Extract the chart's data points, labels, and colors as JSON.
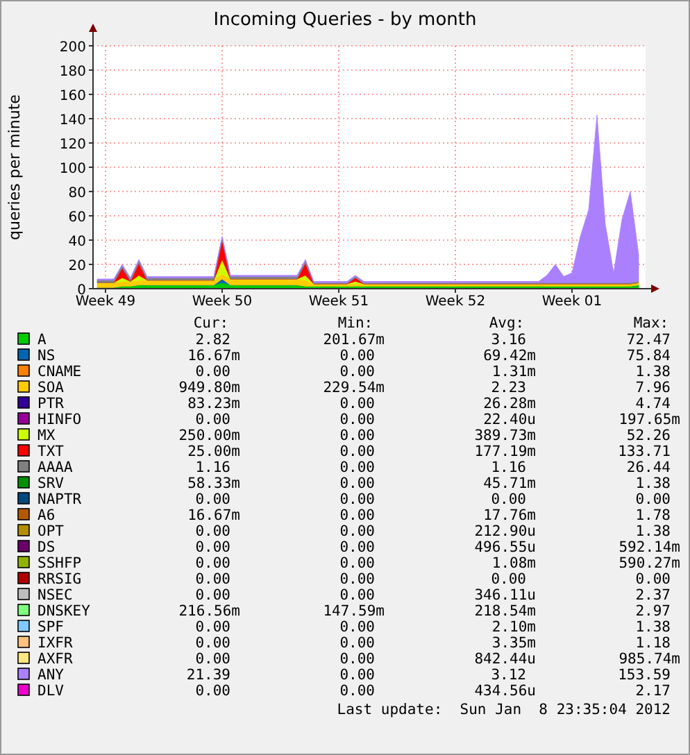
{
  "chart_data": {
    "type": "area",
    "stacked": true,
    "title": "Incoming Queries - by month",
    "ylabel": "queries per minute",
    "categories": [
      null,
      "Week 49",
      null,
      null,
      null,
      null,
      null,
      null,
      null,
      null,
      null,
      null,
      null,
      null,
      null,
      "Week 50",
      null,
      null,
      null,
      null,
      null,
      null,
      null,
      null,
      null,
      null,
      null,
      null,
      null,
      "Week 51",
      null,
      null,
      null,
      null,
      null,
      null,
      null,
      null,
      null,
      null,
      null,
      null,
      null,
      "Week 52",
      null,
      null,
      null,
      null,
      null,
      null,
      null,
      null,
      null,
      null,
      null,
      null,
      null,
      "Week 01",
      null,
      null,
      null,
      null,
      null,
      null,
      null,
      null
    ],
    "ylim": [
      0,
      200
    ],
    "yticks": [
      0,
      20,
      40,
      60,
      80,
      100,
      120,
      140,
      160,
      180,
      200
    ],
    "grid": true,
    "legend": "bottom",
    "series": [
      {
        "name": "A",
        "color": "#00cc00",
        "values": [
          1,
          1,
          1,
          2,
          2,
          3,
          3,
          3,
          3,
          3,
          3,
          3,
          3,
          3,
          3,
          5,
          3,
          3,
          3,
          3,
          3,
          3,
          3,
          3,
          3,
          2,
          2,
          2,
          2,
          2,
          2,
          2,
          2,
          2,
          2,
          2,
          2,
          2,
          2,
          2,
          2,
          2,
          2,
          2,
          2,
          2,
          2,
          2,
          2,
          2,
          2,
          2,
          2,
          2,
          2,
          2,
          2,
          2,
          2,
          2,
          2,
          2,
          2,
          2,
          2,
          3
        ]
      },
      {
        "name": "NS",
        "color": "#0066b3",
        "values": [
          0,
          0,
          0,
          0,
          0,
          0,
          0,
          0,
          0,
          0,
          0,
          0,
          0,
          0,
          0,
          3,
          0,
          0,
          0,
          0,
          0,
          0,
          0,
          0,
          0,
          0,
          0,
          0,
          0,
          0,
          0,
          0,
          0,
          0,
          0,
          0,
          0,
          0,
          0,
          0,
          0,
          0,
          0,
          0,
          0,
          0,
          0,
          0,
          0,
          0,
          0,
          0,
          0,
          0,
          0,
          0,
          0,
          0,
          0,
          0,
          0,
          0,
          0,
          0,
          0,
          0
        ]
      },
      {
        "name": "CNAME",
        "color": "#ff8000",
        "values": [
          null,
          null,
          null,
          null,
          null,
          null,
          null,
          null,
          null,
          null,
          null,
          null,
          null,
          null,
          null,
          null,
          null,
          null,
          null,
          null,
          null,
          null,
          null,
          null,
          null,
          null,
          null,
          null,
          null,
          null,
          null,
          null,
          null,
          null,
          null,
          null,
          null,
          null,
          null,
          null,
          null,
          null,
          null,
          null,
          null,
          null,
          null,
          null,
          null,
          null,
          null,
          null,
          null,
          null,
          null,
          null,
          null,
          null,
          null,
          null,
          null,
          null,
          null,
          null,
          null,
          null
        ]
      },
      {
        "name": "SOA",
        "color": "#ffcc00",
        "values": [
          4,
          4,
          4,
          4,
          4,
          4,
          4,
          4,
          4,
          4,
          4,
          4,
          4,
          4,
          4,
          4,
          5,
          5,
          5,
          5,
          5,
          5,
          5,
          5,
          5,
          5,
          2,
          2,
          2,
          2,
          2,
          2,
          2,
          2,
          2,
          2,
          2,
          2,
          2,
          2,
          2,
          2,
          2,
          2,
          2,
          2,
          2,
          2,
          2,
          2,
          2,
          2,
          2,
          2,
          2,
          2,
          2,
          2,
          2,
          2,
          2,
          2,
          2,
          2,
          2,
          2
        ]
      },
      {
        "name": "PTR",
        "color": "#330099",
        "values": [
          null,
          null,
          null,
          null,
          null,
          null,
          null,
          null,
          null,
          null,
          null,
          null,
          null,
          null,
          null,
          null,
          null,
          null,
          null,
          null,
          null,
          null,
          null,
          null,
          null,
          null,
          null,
          null,
          null,
          null,
          null,
          null,
          null,
          null,
          null,
          null,
          null,
          null,
          null,
          null,
          null,
          null,
          null,
          null,
          null,
          null,
          null,
          null,
          null,
          null,
          null,
          null,
          null,
          null,
          null,
          null,
          null,
          null,
          null,
          null,
          null,
          null,
          null,
          null,
          null,
          null
        ]
      },
      {
        "name": "HINFO",
        "color": "#990099",
        "values": [
          null,
          null,
          null,
          null,
          null,
          null,
          null,
          null,
          null,
          null,
          null,
          null,
          null,
          null,
          null,
          null,
          null,
          null,
          null,
          null,
          null,
          null,
          null,
          null,
          null,
          null,
          null,
          null,
          null,
          null,
          null,
          null,
          null,
          null,
          null,
          null,
          null,
          null,
          null,
          null,
          null,
          null,
          null,
          null,
          null,
          null,
          null,
          null,
          null,
          null,
          null,
          null,
          null,
          null,
          null,
          null,
          null,
          null,
          null,
          null,
          null,
          null,
          null,
          null,
          null,
          null
        ]
      },
      {
        "name": "MX",
        "color": "#ccff00",
        "values": [
          0,
          0,
          0,
          3,
          0,
          4,
          0,
          0,
          0,
          0,
          0,
          0,
          0,
          0,
          0,
          12,
          0,
          0,
          0,
          0,
          0,
          0,
          0,
          0,
          0,
          4,
          0,
          0,
          0,
          0,
          0,
          2,
          0,
          0,
          0,
          0,
          0,
          0,
          0,
          0,
          0,
          0,
          0,
          0,
          0,
          0,
          0,
          0,
          0,
          0,
          0,
          0,
          0,
          0,
          0,
          0,
          0,
          0,
          0,
          0,
          0,
          0,
          0,
          0,
          0,
          0
        ]
      },
      {
        "name": "TXT",
        "color": "#ff0000",
        "values": [
          0,
          0,
          0,
          8,
          0,
          10,
          0,
          0,
          0,
          0,
          0,
          0,
          0,
          0,
          0,
          16,
          0,
          0,
          0,
          0,
          0,
          0,
          0,
          0,
          0,
          10,
          0,
          0,
          0,
          0,
          0,
          3,
          0,
          0,
          0,
          0,
          0,
          0,
          0,
          0,
          0,
          0,
          0,
          0,
          0,
          0,
          0,
          0,
          0,
          0,
          0,
          0,
          0,
          0,
          0,
          0,
          0,
          0,
          0,
          0,
          0,
          0,
          0,
          0,
          0,
          0
        ]
      },
      {
        "name": "AAAA",
        "color": "#808080",
        "values": [
          2,
          2,
          2,
          2,
          2,
          2,
          2,
          2,
          2,
          2,
          2,
          2,
          2,
          2,
          2,
          2,
          2,
          2,
          2,
          2,
          2,
          2,
          2,
          2,
          2,
          2,
          1,
          1,
          1,
          1,
          1,
          1,
          1,
          1,
          1,
          1,
          1,
          1,
          1,
          1,
          1,
          1,
          1,
          1,
          1,
          1,
          1,
          1,
          1,
          1,
          1,
          1,
          1,
          1,
          1,
          1,
          1,
          1,
          1,
          1,
          1,
          1,
          1,
          1,
          1,
          1
        ]
      },
      {
        "name": "SRV",
        "color": "#008f00",
        "values": [
          null,
          null,
          null,
          null,
          null,
          null,
          null,
          null,
          null,
          null,
          null,
          null,
          null,
          null,
          null,
          null,
          null,
          null,
          null,
          null,
          null,
          null,
          null,
          null,
          null,
          null,
          null,
          null,
          null,
          null,
          null,
          null,
          null,
          null,
          null,
          null,
          null,
          null,
          null,
          null,
          null,
          null,
          null,
          null,
          null,
          null,
          null,
          null,
          null,
          null,
          null,
          null,
          null,
          null,
          null,
          null,
          null,
          null,
          null,
          null,
          null,
          null,
          null,
          null,
          null,
          null
        ]
      },
      {
        "name": "NAPTR",
        "color": "#00487d",
        "values": [
          null,
          null,
          null,
          null,
          null,
          null,
          null,
          null,
          null,
          null,
          null,
          null,
          null,
          null,
          null,
          null,
          null,
          null,
          null,
          null,
          null,
          null,
          null,
          null,
          null,
          null,
          null,
          null,
          null,
          null,
          null,
          null,
          null,
          null,
          null,
          null,
          null,
          null,
          null,
          null,
          null,
          null,
          null,
          null,
          null,
          null,
          null,
          null,
          null,
          null,
          null,
          null,
          null,
          null,
          null,
          null,
          null,
          null,
          null,
          null,
          null,
          null,
          null,
          null,
          null,
          null
        ]
      },
      {
        "name": "A6",
        "color": "#b35a00",
        "values": [
          null,
          null,
          null,
          null,
          null,
          null,
          null,
          null,
          null,
          null,
          null,
          null,
          null,
          null,
          null,
          null,
          null,
          null,
          null,
          null,
          null,
          null,
          null,
          null,
          null,
          null,
          null,
          null,
          null,
          null,
          null,
          null,
          null,
          null,
          null,
          null,
          null,
          null,
          null,
          null,
          null,
          null,
          null,
          null,
          null,
          null,
          null,
          null,
          null,
          null,
          null,
          null,
          null,
          null,
          null,
          null,
          null,
          null,
          null,
          null,
          null,
          null,
          null,
          null,
          null,
          null
        ]
      },
      {
        "name": "OPT",
        "color": "#b38f00",
        "values": [
          null,
          null,
          null,
          null,
          null,
          null,
          null,
          null,
          null,
          null,
          null,
          null,
          null,
          null,
          null,
          null,
          null,
          null,
          null,
          null,
          null,
          null,
          null,
          null,
          null,
          null,
          null,
          null,
          null,
          null,
          null,
          null,
          null,
          null,
          null,
          null,
          null,
          null,
          null,
          null,
          null,
          null,
          null,
          null,
          null,
          null,
          null,
          null,
          null,
          null,
          null,
          null,
          null,
          null,
          null,
          null,
          null,
          null,
          null,
          null,
          null,
          null,
          null,
          null,
          null,
          null
        ]
      },
      {
        "name": "DS",
        "color": "#6b006b",
        "values": [
          null,
          null,
          null,
          null,
          null,
          null,
          null,
          null,
          null,
          null,
          null,
          null,
          null,
          null,
          null,
          null,
          null,
          null,
          null,
          null,
          null,
          null,
          null,
          null,
          null,
          null,
          null,
          null,
          null,
          null,
          null,
          null,
          null,
          null,
          null,
          null,
          null,
          null,
          null,
          null,
          null,
          null,
          null,
          null,
          null,
          null,
          null,
          null,
          null,
          null,
          null,
          null,
          null,
          null,
          null,
          null,
          null,
          null,
          null,
          null,
          null,
          null,
          null,
          null,
          null,
          null
        ]
      },
      {
        "name": "SSHFP",
        "color": "#8fb300",
        "values": [
          null,
          null,
          null,
          null,
          null,
          null,
          null,
          null,
          null,
          null,
          null,
          null,
          null,
          null,
          null,
          null,
          null,
          null,
          null,
          null,
          null,
          null,
          null,
          null,
          null,
          null,
          null,
          null,
          null,
          null,
          null,
          null,
          null,
          null,
          null,
          null,
          null,
          null,
          null,
          null,
          null,
          null,
          null,
          null,
          null,
          null,
          null,
          null,
          null,
          null,
          null,
          null,
          null,
          null,
          null,
          null,
          null,
          null,
          null,
          null,
          null,
          null,
          null,
          null,
          null,
          null
        ]
      },
      {
        "name": "RRSIG",
        "color": "#b30000",
        "values": [
          null,
          null,
          null,
          null,
          null,
          null,
          null,
          null,
          null,
          null,
          null,
          null,
          null,
          null,
          null,
          null,
          null,
          null,
          null,
          null,
          null,
          null,
          null,
          null,
          null,
          null,
          null,
          null,
          null,
          null,
          null,
          null,
          null,
          null,
          null,
          null,
          null,
          null,
          null,
          null,
          null,
          null,
          null,
          null,
          null,
          null,
          null,
          null,
          null,
          null,
          null,
          null,
          null,
          null,
          null,
          null,
          null,
          null,
          null,
          null,
          null,
          null,
          null,
          null,
          null,
          null
        ]
      },
      {
        "name": "NSEC",
        "color": "#bebebe",
        "values": [
          null,
          null,
          null,
          null,
          null,
          null,
          null,
          null,
          null,
          null,
          null,
          null,
          null,
          null,
          null,
          null,
          null,
          null,
          null,
          null,
          null,
          null,
          null,
          null,
          null,
          null,
          null,
          null,
          null,
          null,
          null,
          null,
          null,
          null,
          null,
          null,
          null,
          null,
          null,
          null,
          null,
          null,
          null,
          null,
          null,
          null,
          null,
          null,
          null,
          null,
          null,
          null,
          null,
          null,
          null,
          null,
          null,
          null,
          null,
          null,
          null,
          null,
          null,
          null,
          null,
          null
        ]
      },
      {
        "name": "DNSKEY",
        "color": "#80ff80",
        "values": [
          null,
          null,
          null,
          null,
          null,
          null,
          null,
          null,
          null,
          null,
          null,
          null,
          null,
          null,
          null,
          null,
          null,
          null,
          null,
          null,
          null,
          null,
          null,
          null,
          null,
          null,
          null,
          null,
          null,
          null,
          null,
          null,
          null,
          null,
          null,
          null,
          null,
          null,
          null,
          null,
          null,
          null,
          null,
          null,
          null,
          null,
          null,
          null,
          null,
          null,
          null,
          null,
          null,
          null,
          null,
          null,
          null,
          null,
          null,
          null,
          null,
          null,
          null,
          null,
          null,
          null
        ]
      },
      {
        "name": "SPF",
        "color": "#80c9ff",
        "values": [
          null,
          null,
          null,
          null,
          null,
          null,
          null,
          null,
          null,
          null,
          null,
          null,
          null,
          null,
          null,
          null,
          null,
          null,
          null,
          null,
          null,
          null,
          null,
          null,
          null,
          null,
          null,
          null,
          null,
          null,
          null,
          null,
          null,
          null,
          null,
          null,
          null,
          null,
          null,
          null,
          null,
          null,
          null,
          null,
          null,
          null,
          null,
          null,
          null,
          null,
          null,
          null,
          null,
          null,
          null,
          null,
          null,
          null,
          null,
          null,
          null,
          null,
          null,
          null,
          null,
          null
        ]
      },
      {
        "name": "IXFR",
        "color": "#ffc080",
        "values": [
          null,
          null,
          null,
          null,
          null,
          null,
          null,
          null,
          null,
          null,
          null,
          null,
          null,
          null,
          null,
          null,
          null,
          null,
          null,
          null,
          null,
          null,
          null,
          null,
          null,
          null,
          null,
          null,
          null,
          null,
          null,
          null,
          null,
          null,
          null,
          null,
          null,
          null,
          null,
          null,
          null,
          null,
          null,
          null,
          null,
          null,
          null,
          null,
          null,
          null,
          null,
          null,
          null,
          null,
          null,
          null,
          null,
          null,
          null,
          null,
          null,
          null,
          null,
          null,
          null,
          null
        ]
      },
      {
        "name": "AXFR",
        "color": "#ffe680",
        "values": [
          null,
          null,
          null,
          null,
          null,
          null,
          null,
          null,
          null,
          null,
          null,
          null,
          null,
          null,
          null,
          null,
          null,
          null,
          null,
          null,
          null,
          null,
          null,
          null,
          null,
          null,
          null,
          null,
          null,
          null,
          null,
          null,
          null,
          null,
          null,
          null,
          null,
          null,
          null,
          null,
          null,
          null,
          null,
          null,
          null,
          null,
          null,
          null,
          null,
          null,
          null,
          null,
          null,
          null,
          null,
          null,
          null,
          null,
          null,
          null,
          null,
          null,
          null,
          null,
          null,
          null
        ]
      },
      {
        "name": "ANY",
        "color": "#aa80ff",
        "values": [
          1,
          1,
          1,
          1,
          1,
          1,
          1,
          1,
          1,
          1,
          1,
          1,
          1,
          1,
          1,
          1,
          1,
          1,
          1,
          1,
          1,
          1,
          1,
          1,
          1,
          1,
          1,
          1,
          1,
          1,
          1,
          1,
          1,
          1,
          1,
          1,
          1,
          1,
          1,
          1,
          1,
          1,
          1,
          1,
          1,
          1,
          1,
          1,
          1,
          1,
          1,
          1,
          1,
          1,
          6,
          15,
          5,
          8,
          38,
          60,
          138,
          48,
          8,
          52,
          75,
          22
        ]
      },
      {
        "name": "DLV",
        "color": "#ee00cc",
        "values": [
          null,
          null,
          null,
          null,
          null,
          null,
          null,
          null,
          null,
          null,
          null,
          null,
          null,
          null,
          null,
          null,
          null,
          null,
          null,
          null,
          null,
          null,
          null,
          null,
          null,
          null,
          null,
          null,
          null,
          null,
          null,
          null,
          null,
          null,
          null,
          null,
          null,
          null,
          null,
          null,
          null,
          null,
          null,
          null,
          null,
          null,
          null,
          null,
          null,
          null,
          null,
          null,
          null,
          null,
          null,
          null,
          null,
          null,
          null,
          null,
          null,
          null,
          null,
          null,
          null,
          null
        ]
      }
    ],
    "annotations": [
      "Cur:",
      "Min:",
      "Avg:",
      "Max:",
      "2.82",
      "201.67m",
      "3.16",
      "72.47",
      "16.67m",
      "0.00",
      "69.42m",
      "75.84",
      "0.00",
      "0.00",
      "1.31m",
      "1.38",
      "949.80m",
      "229.54m",
      "2.23",
      "7.96",
      "83.23m",
      "0.00",
      "26.28m",
      "4.74",
      "0.00",
      "0.00",
      "22.40u",
      "197.65m",
      "250.00m",
      "0.00",
      "389.73m",
      "52.26",
      "25.00m",
      "0.00",
      "177.19m",
      "133.71",
      "1.16",
      "0.00",
      "1.16",
      "26.44",
      "58.33m",
      "0.00",
      "45.71m",
      "1.38",
      "0.00",
      "0.00",
      "0.00",
      "0.00",
      "16.67m",
      "0.00",
      "17.76m",
      "1.78",
      "0.00",
      "0.00",
      "212.90u",
      "1.38",
      "0.00",
      "0.00",
      "496.55u",
      "592.14m",
      "0.00",
      "0.00",
      "1.08m",
      "590.27m",
      "0.00",
      "0.00",
      "0.00",
      "0.00",
      "0.00",
      "0.00",
      "346.11u",
      "2.37",
      "216.56m",
      "147.59m",
      "218.54m",
      "2.97",
      "0.00",
      "0.00",
      "2.10m",
      "1.38",
      "0.00",
      "0.00",
      "3.35m",
      "1.18",
      "0.00",
      "0.00",
      "842.44u",
      "985.74m",
      "21.39",
      "0.00",
      "3.12",
      "153.59",
      "0.00",
      "0.00",
      "434.56u",
      "2.17",
      "Last update:  Sun Jan  8 23:35:04 2012"
    ]
  }
}
